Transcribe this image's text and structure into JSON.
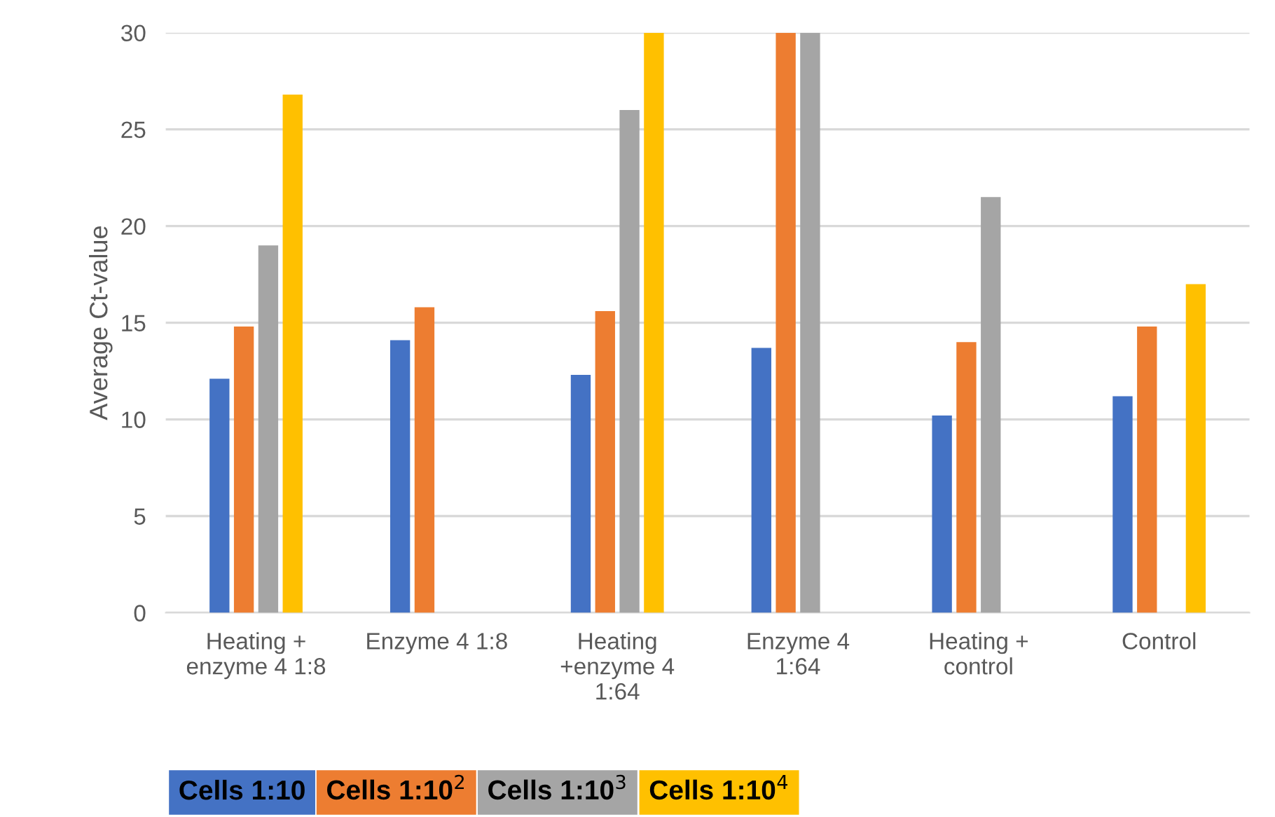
{
  "chart_data": {
    "type": "bar",
    "ylabel": "Average Ct-value",
    "categories": [
      "Heating +\nenzyme 4 1:8",
      "Enzyme 4 1:8",
      "Heating\n+enzyme 4\n1:64",
      "Enzyme 4\n1:64",
      "Heating +\ncontrol",
      "Control"
    ],
    "series": [
      {
        "name": "Cells 1:10",
        "color": "#4472c4",
        "values": [
          12.1,
          14.1,
          12.3,
          13.7,
          10.2,
          11.2
        ]
      },
      {
        "name": "Cells 1:10$^{2}$",
        "color": "#ed7d31",
        "values": [
          14.8,
          15.8,
          15.6,
          30,
          14.0,
          14.8
        ]
      },
      {
        "name": "Cells 1:10$^{3}$",
        "color": "#a5a5a5",
        "values": [
          19.0,
          null,
          26.0,
          30,
          21.5,
          null
        ]
      },
      {
        "name": "Cells 1:10$^{4}$",
        "color": "#ffc000",
        "values": [
          26.8,
          null,
          30,
          null,
          null,
          17.0
        ]
      }
    ],
    "ylim": [
      0,
      30
    ],
    "yticks": [
      0,
      5,
      10,
      15,
      20,
      25,
      30
    ],
    "grid": "y",
    "legend": "bottom"
  }
}
